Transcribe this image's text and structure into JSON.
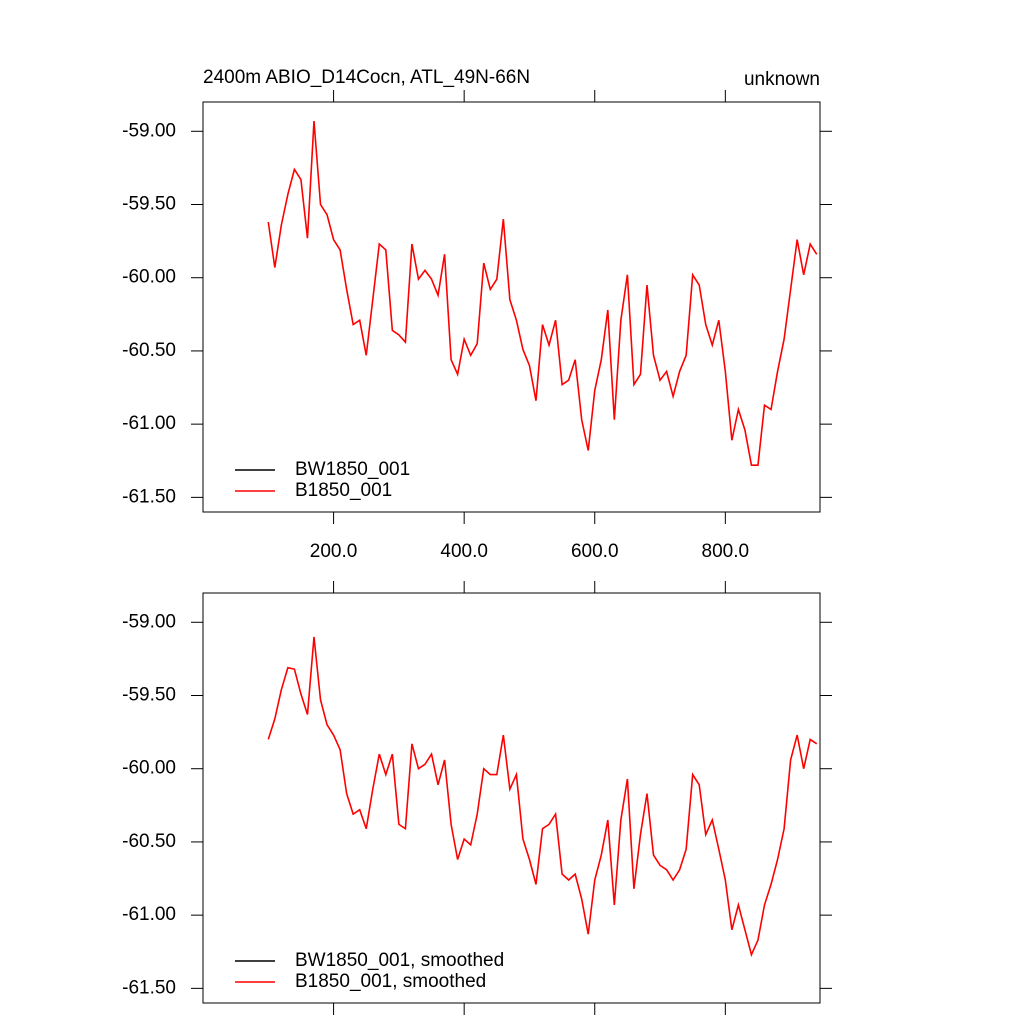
{
  "chart_data": [
    {
      "type": "line",
      "title": "2400m ABIO_D14Cocn, ATL_49N-66N",
      "subtitle": "unknown",
      "xlim": [
        0,
        945
      ],
      "ylim": [
        -61.6,
        -58.8
      ],
      "xticks": [
        {
          "value": 200,
          "label": "200.0"
        },
        {
          "value": 400,
          "label": "400.0"
        },
        {
          "value": 600,
          "label": "600.0"
        },
        {
          "value": 800,
          "label": "800.0"
        }
      ],
      "yticks": [
        {
          "value": -59,
          "label": "-59.00"
        },
        {
          "value": -59.5,
          "label": "-59.50"
        },
        {
          "value": -60,
          "label": "-60.00"
        },
        {
          "value": -60.5,
          "label": "-60.50"
        },
        {
          "value": -61,
          "label": "-61.00"
        },
        {
          "value": -61.5,
          "label": "-61.50"
        }
      ],
      "legend": "lower left",
      "x": [
        100,
        110,
        120,
        130,
        140,
        150,
        160,
        170,
        180,
        190,
        200,
        210,
        220,
        230,
        240,
        250,
        260,
        270,
        280,
        290,
        300,
        310,
        320,
        330,
        340,
        350,
        360,
        370,
        380,
        390,
        400,
        410,
        420,
        430,
        440,
        450,
        460,
        470,
        480,
        490,
        500,
        510,
        520,
        530,
        540,
        550,
        560,
        570,
        580,
        590,
        600,
        610,
        620,
        630,
        640,
        650,
        660,
        670,
        680,
        690,
        700,
        710,
        720,
        730,
        740,
        750,
        760,
        770,
        780,
        790,
        800,
        810,
        820,
        830,
        840,
        850,
        860,
        870,
        880,
        890,
        900,
        910,
        920,
        930,
        940
      ],
      "series": [
        {
          "name": "BW1850_001",
          "color": "#000000",
          "values": [
            null,
            null,
            null,
            null,
            null,
            null,
            null,
            null,
            null,
            null,
            null,
            null,
            null,
            null,
            null,
            null,
            null,
            null,
            null,
            null,
            null,
            null,
            null,
            null,
            null,
            null,
            null,
            null,
            null,
            null,
            null,
            null,
            null,
            null,
            null,
            null,
            null,
            null,
            null,
            null,
            null,
            null,
            null,
            null,
            null,
            null,
            null,
            null,
            null,
            null,
            null,
            null,
            null,
            null,
            null,
            null,
            null,
            null,
            null,
            null,
            null,
            null,
            null,
            null,
            null,
            null,
            null,
            null,
            null,
            null,
            null,
            null,
            null,
            null,
            null,
            null,
            null,
            null,
            null,
            null,
            null,
            null,
            null,
            null,
            null
          ]
        },
        {
          "name": "B1850_001",
          "color": "#ff0000",
          "values": [
            -59.62,
            -59.93,
            -59.64,
            -59.43,
            -59.26,
            -59.33,
            -59.73,
            -58.93,
            -59.5,
            -59.57,
            -59.74,
            -59.81,
            -60.08,
            -60.32,
            -60.29,
            -60.53,
            -60.15,
            -59.77,
            -59.81,
            -60.36,
            -60.39,
            -60.44,
            -59.77,
            -60.01,
            -59.95,
            -60.01,
            -60.12,
            -59.84,
            -60.56,
            -60.66,
            -60.42,
            -60.53,
            -60.45,
            -59.9,
            -60.08,
            -60.01,
            -59.6,
            -60.15,
            -60.29,
            -60.49,
            -60.6,
            -60.84,
            -60.32,
            -60.46,
            -60.29,
            -60.73,
            -60.7,
            -60.56,
            -60.97,
            -61.18,
            -60.77,
            -60.56,
            -60.22,
            -60.97,
            -60.29,
            -59.98,
            -60.73,
            -60.66,
            -60.05,
            -60.53,
            -60.7,
            -60.64,
            -60.81,
            -60.64,
            -60.53,
            -59.98,
            -60.05,
            -60.32,
            -60.46,
            -60.29,
            -60.64,
            -61.11,
            -60.9,
            -61.04,
            -61.28,
            -61.28,
            -60.87,
            -60.9,
            -60.64,
            -60.42,
            -60.08,
            -59.74,
            -59.98,
            -59.77,
            -59.84
          ]
        }
      ]
    },
    {
      "type": "line",
      "xlim": [
        0,
        945
      ],
      "ylim": [
        -61.6,
        -58.8
      ],
      "xticks": [
        200,
        400,
        600,
        800
      ],
      "x_tick_labels": false,
      "yticks": [
        {
          "value": -59,
          "label": "-59.00"
        },
        {
          "value": -59.5,
          "label": "-59.50"
        },
        {
          "value": -60,
          "label": "-60.00"
        },
        {
          "value": -60.5,
          "label": "-60.50"
        },
        {
          "value": -61,
          "label": "-61.00"
        },
        {
          "value": -61.5,
          "label": "-61.50"
        }
      ],
      "legend": "lower left",
      "x": [
        100,
        110,
        120,
        130,
        140,
        150,
        160,
        170,
        180,
        190,
        200,
        210,
        220,
        230,
        240,
        250,
        260,
        270,
        280,
        290,
        300,
        310,
        320,
        330,
        340,
        350,
        360,
        370,
        380,
        390,
        400,
        410,
        420,
        430,
        440,
        450,
        460,
        470,
        480,
        490,
        500,
        510,
        520,
        530,
        540,
        550,
        560,
        570,
        580,
        590,
        600,
        610,
        620,
        630,
        640,
        650,
        660,
        670,
        680,
        690,
        700,
        710,
        720,
        730,
        740,
        750,
        760,
        770,
        780,
        790,
        800,
        810,
        820,
        830,
        840,
        850,
        860,
        870,
        880,
        890,
        900,
        910,
        920,
        930,
        940
      ],
      "series": [
        {
          "name": "BW1850_001, smoothed",
          "color": "#000000",
          "values": [
            null,
            null,
            null,
            null,
            null,
            null,
            null,
            null,
            null,
            null,
            null,
            null,
            null,
            null,
            null,
            null,
            null,
            null,
            null,
            null,
            null,
            null,
            null,
            null,
            null,
            null,
            null,
            null,
            null,
            null,
            null,
            null,
            null,
            null,
            null,
            null,
            null,
            null,
            null,
            null,
            null,
            null,
            null,
            null,
            null,
            null,
            null,
            null,
            null,
            null,
            null,
            null,
            null,
            null,
            null,
            null,
            null,
            null,
            null,
            null,
            null,
            null,
            null,
            null,
            null,
            null,
            null,
            null,
            null,
            null,
            null,
            null,
            null,
            null,
            null,
            null,
            null,
            null,
            null,
            null,
            null,
            null,
            null,
            null,
            null
          ]
        },
        {
          "name": "B1850_001, smoothed",
          "color": "#ff0000",
          "values": [
            -59.8,
            -59.66,
            -59.46,
            -59.31,
            -59.32,
            -59.49,
            -59.63,
            -59.1,
            -59.53,
            -59.7,
            -59.77,
            -59.87,
            -60.17,
            -60.31,
            -60.28,
            -60.41,
            -60.14,
            -59.9,
            -60.04,
            -59.9,
            -60.38,
            -60.41,
            -59.83,
            -60.0,
            -59.97,
            -59.9,
            -60.11,
            -59.94,
            -60.38,
            -60.62,
            -60.48,
            -60.52,
            -60.31,
            -60.0,
            -60.04,
            -60.04,
            -59.77,
            -60.14,
            -60.04,
            -60.48,
            -60.62,
            -60.79,
            -60.41,
            -60.38,
            -60.31,
            -60.72,
            -60.76,
            -60.72,
            -60.89,
            -61.13,
            -60.76,
            -60.59,
            -60.35,
            -60.93,
            -60.35,
            -60.07,
            -60.82,
            -60.45,
            -60.17,
            -60.59,
            -60.66,
            -60.69,
            -60.76,
            -60.69,
            -60.55,
            -60.04,
            -60.11,
            -60.45,
            -60.35,
            -60.55,
            -60.76,
            -61.1,
            -60.93,
            -61.1,
            -61.27,
            -61.17,
            -60.93,
            -60.79,
            -60.62,
            -60.41,
            -59.94,
            -59.77,
            -60.0,
            -59.8,
            -59.83
          ]
        }
      ]
    }
  ]
}
